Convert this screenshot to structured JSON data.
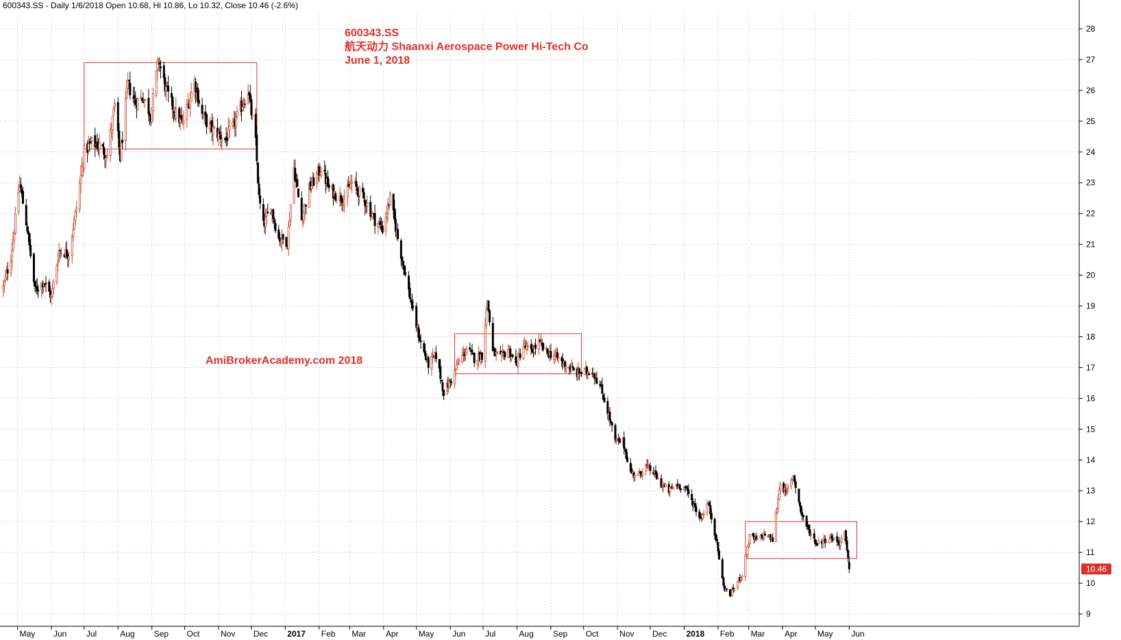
{
  "header": {
    "text": "600343.SS - Daily 1/6/2018 Open 10.68, Hi 10.86, Lo 10.32, Close 10.46 (-2.6%)"
  },
  "annotations": {
    "ticker": "600343.SS",
    "company": "航天动力 Shaanxi Aerospace Power Hi-Tech Co",
    "date": "June 1, 2018",
    "watermark": "AmiBrokerAcademy.com  2018"
  },
  "colors": {
    "up": "#c8452a",
    "down": "#000000",
    "box": "#e0302a",
    "grid": "#b4b4b4",
    "last_label_bg": "#d9302a"
  },
  "chart_data": {
    "type": "candlestick",
    "symbol": "600343.SS",
    "interval": "Daily",
    "ylim": [
      9,
      28
    ],
    "y_ticks": [
      9,
      10,
      11,
      12,
      13,
      14,
      15,
      16,
      17,
      18,
      19,
      20,
      21,
      22,
      23,
      24,
      25,
      26,
      27,
      28
    ],
    "x_ticks": [
      "May",
      "Jun",
      "Jul",
      "Aug",
      "Sep",
      "Oct",
      "Nov",
      "Dec",
      "2017",
      "Feb",
      "Mar",
      "Apr",
      "May",
      "Jun",
      "Jul",
      "Aug",
      "Sep",
      "Oct",
      "Nov",
      "Dec",
      "2018",
      "Feb",
      "Mar",
      "Apr",
      "May",
      "Jun"
    ],
    "bold_x_ticks": [
      "2017",
      "2018"
    ],
    "last": {
      "open": 10.68,
      "high": 10.86,
      "low": 10.32,
      "close": 10.46,
      "change_pct": -2.6,
      "label": "10.46"
    },
    "price_path": [
      [
        "2016-04-18",
        19.6
      ],
      [
        "2016-04-25",
        20.6
      ],
      [
        "2016-05-03",
        23.0
      ],
      [
        "2016-05-10",
        21.5
      ],
      [
        "2016-05-17",
        19.5
      ],
      [
        "2016-05-25",
        19.8
      ],
      [
        "2016-06-01",
        19.3
      ],
      [
        "2016-06-08",
        20.8
      ],
      [
        "2016-06-17",
        20.7
      ],
      [
        "2016-06-24",
        22.2
      ],
      [
        "2016-07-01",
        24.0
      ],
      [
        "2016-07-08",
        24.3
      ],
      [
        "2016-07-15",
        24.2
      ],
      [
        "2016-07-22",
        23.9
      ],
      [
        "2016-07-29",
        25.5
      ],
      [
        "2016-08-03",
        23.8
      ],
      [
        "2016-08-10",
        26.2
      ],
      [
        "2016-08-17",
        25.6
      ],
      [
        "2016-08-24",
        25.8
      ],
      [
        "2016-08-31",
        25.2
      ],
      [
        "2016-09-07",
        27.0
      ],
      [
        "2016-09-14",
        26.0
      ],
      [
        "2016-09-22",
        25.3
      ],
      [
        "2016-09-29",
        24.9
      ],
      [
        "2016-10-10",
        26.3
      ],
      [
        "2016-10-17",
        25.2
      ],
      [
        "2016-10-24",
        24.8
      ],
      [
        "2016-10-31",
        24.6
      ],
      [
        "2016-11-07",
        24.4
      ],
      [
        "2016-11-14",
        24.8
      ],
      [
        "2016-11-21",
        25.4
      ],
      [
        "2016-11-28",
        26.0
      ],
      [
        "2016-12-05",
        24.3
      ],
      [
        "2016-12-08",
        22.5
      ],
      [
        "2016-12-12",
        21.6
      ],
      [
        "2016-12-19",
        22.2
      ],
      [
        "2016-12-26",
        21.2
      ],
      [
        "2017-01-03",
        21.1
      ],
      [
        "2017-01-09",
        23.5
      ],
      [
        "2017-01-16",
        21.8
      ],
      [
        "2017-01-23",
        22.8
      ],
      [
        "2017-02-03",
        23.5
      ],
      [
        "2017-02-10",
        22.8
      ],
      [
        "2017-02-17",
        22.6
      ],
      [
        "2017-02-24",
        22.5
      ],
      [
        "2017-03-03",
        23.0
      ],
      [
        "2017-03-10",
        22.7
      ],
      [
        "2017-03-17",
        22.3
      ],
      [
        "2017-03-24",
        21.8
      ],
      [
        "2017-03-31",
        21.5
      ],
      [
        "2017-04-07",
        22.5
      ],
      [
        "2017-04-14",
        21.2
      ],
      [
        "2017-04-21",
        20.0
      ],
      [
        "2017-04-28",
        18.8
      ],
      [
        "2017-05-05",
        17.8
      ],
      [
        "2017-05-12",
        17.1
      ],
      [
        "2017-05-19",
        17.4
      ],
      [
        "2017-05-26",
        16.2
      ],
      [
        "2017-06-02",
        16.6
      ],
      [
        "2017-06-09",
        17.2
      ],
      [
        "2017-06-16",
        17.6
      ],
      [
        "2017-06-23",
        17.3
      ],
      [
        "2017-06-30",
        17.4
      ],
      [
        "2017-07-05",
        19.2
      ],
      [
        "2017-07-10",
        17.5
      ],
      [
        "2017-07-17",
        17.3
      ],
      [
        "2017-07-24",
        17.6
      ],
      [
        "2017-07-31",
        17.1
      ],
      [
        "2017-08-07",
        17.7
      ],
      [
        "2017-08-14",
        17.5
      ],
      [
        "2017-08-21",
        17.8
      ],
      [
        "2017-08-28",
        17.5
      ],
      [
        "2017-09-04",
        17.4
      ],
      [
        "2017-09-11",
        17.2
      ],
      [
        "2017-09-18",
        17.0
      ],
      [
        "2017-09-25",
        16.8
      ],
      [
        "2017-10-09",
        16.9
      ],
      [
        "2017-10-16",
        16.4
      ],
      [
        "2017-10-23",
        15.6
      ],
      [
        "2017-10-30",
        14.6
      ],
      [
        "2017-11-06",
        14.6
      ],
      [
        "2017-11-13",
        13.6
      ],
      [
        "2017-11-20",
        13.5
      ],
      [
        "2017-11-27",
        13.8
      ],
      [
        "2017-12-04",
        13.6
      ],
      [
        "2017-12-11",
        13.2
      ],
      [
        "2017-12-18",
        13.0
      ],
      [
        "2017-12-25",
        13.2
      ],
      [
        "2018-01-02",
        13.1
      ],
      [
        "2018-01-09",
        12.6
      ],
      [
        "2018-01-16",
        12.1
      ],
      [
        "2018-01-23",
        12.6
      ],
      [
        "2018-01-30",
        11.5
      ],
      [
        "2018-02-06",
        9.9
      ],
      [
        "2018-02-12",
        9.6
      ],
      [
        "2018-02-23",
        10.3
      ],
      [
        "2018-03-02",
        11.5
      ],
      [
        "2018-03-09",
        11.4
      ],
      [
        "2018-03-16",
        11.6
      ],
      [
        "2018-03-23",
        11.4
      ],
      [
        "2018-03-30",
        13.3
      ],
      [
        "2018-04-04",
        12.9
      ],
      [
        "2018-04-11",
        13.5
      ],
      [
        "2018-04-18",
        12.3
      ],
      [
        "2018-04-25",
        11.7
      ],
      [
        "2018-05-02",
        11.3
      ],
      [
        "2018-05-09",
        11.4
      ],
      [
        "2018-05-16",
        11.5
      ],
      [
        "2018-05-23",
        11.3
      ],
      [
        "2018-05-28",
        11.6
      ],
      [
        "2018-06-01",
        10.46
      ]
    ],
    "boxes": [
      {
        "from": "2016-07-01",
        "to": "2016-12-06",
        "low": 24.1,
        "high": 26.9
      },
      {
        "from": "2017-06-05",
        "to": "2017-09-29",
        "low": 16.8,
        "high": 18.1
      },
      {
        "from": "2018-02-26",
        "to": "2018-06-08",
        "low": 10.8,
        "high": 12.0
      }
    ]
  }
}
